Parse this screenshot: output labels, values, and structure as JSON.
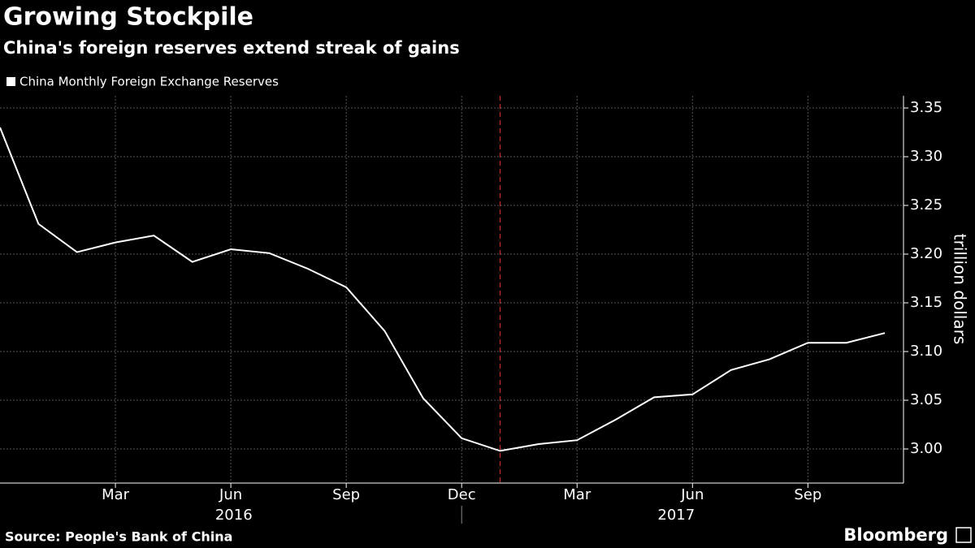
{
  "title": "Growing Stockpile",
  "subtitle": "China's foreign reserves extend streak of gains",
  "source": "Source: People's Bank of China",
  "brand": "Bloomberg",
  "chart_data": {
    "type": "line",
    "categories": [
      null,
      null,
      null,
      "Mar",
      null,
      null,
      "Jun",
      null,
      null,
      "Sep",
      null,
      null,
      "Dec",
      null,
      null,
      "Mar",
      null,
      null,
      "Jun",
      null,
      null,
      "Sep",
      null,
      null
    ],
    "years": [
      "2016",
      "2017"
    ],
    "series": [
      {
        "name": "China Monthly Foreign Exchange Reserves",
        "color": "#ffffff",
        "values": [
          3.33,
          3.231,
          3.202,
          3.212,
          3.219,
          3.192,
          3.205,
          3.201,
          3.185,
          3.166,
          3.121,
          3.052,
          3.011,
          2.998,
          3.005,
          3.009,
          3.03,
          3.053,
          3.056,
          3.081,
          3.092,
          3.109,
          3.109,
          3.119
        ]
      }
    ],
    "ylabel": "trillion dollars",
    "ylim": [
      2.965,
      3.3625
    ],
    "yticks": [
      {
        "value": 3.0,
        "label": "3.00"
      },
      3.05,
      {
        "value": 3.1,
        "label": "3.10"
      },
      3.15,
      {
        "value": 3.2,
        "label": "3.20"
      },
      3.25,
      {
        "value": 3.3,
        "label": "3.30"
      },
      3.35
    ],
    "grid": true,
    "vline_category_index": 13,
    "vline_color": "#e03030"
  }
}
